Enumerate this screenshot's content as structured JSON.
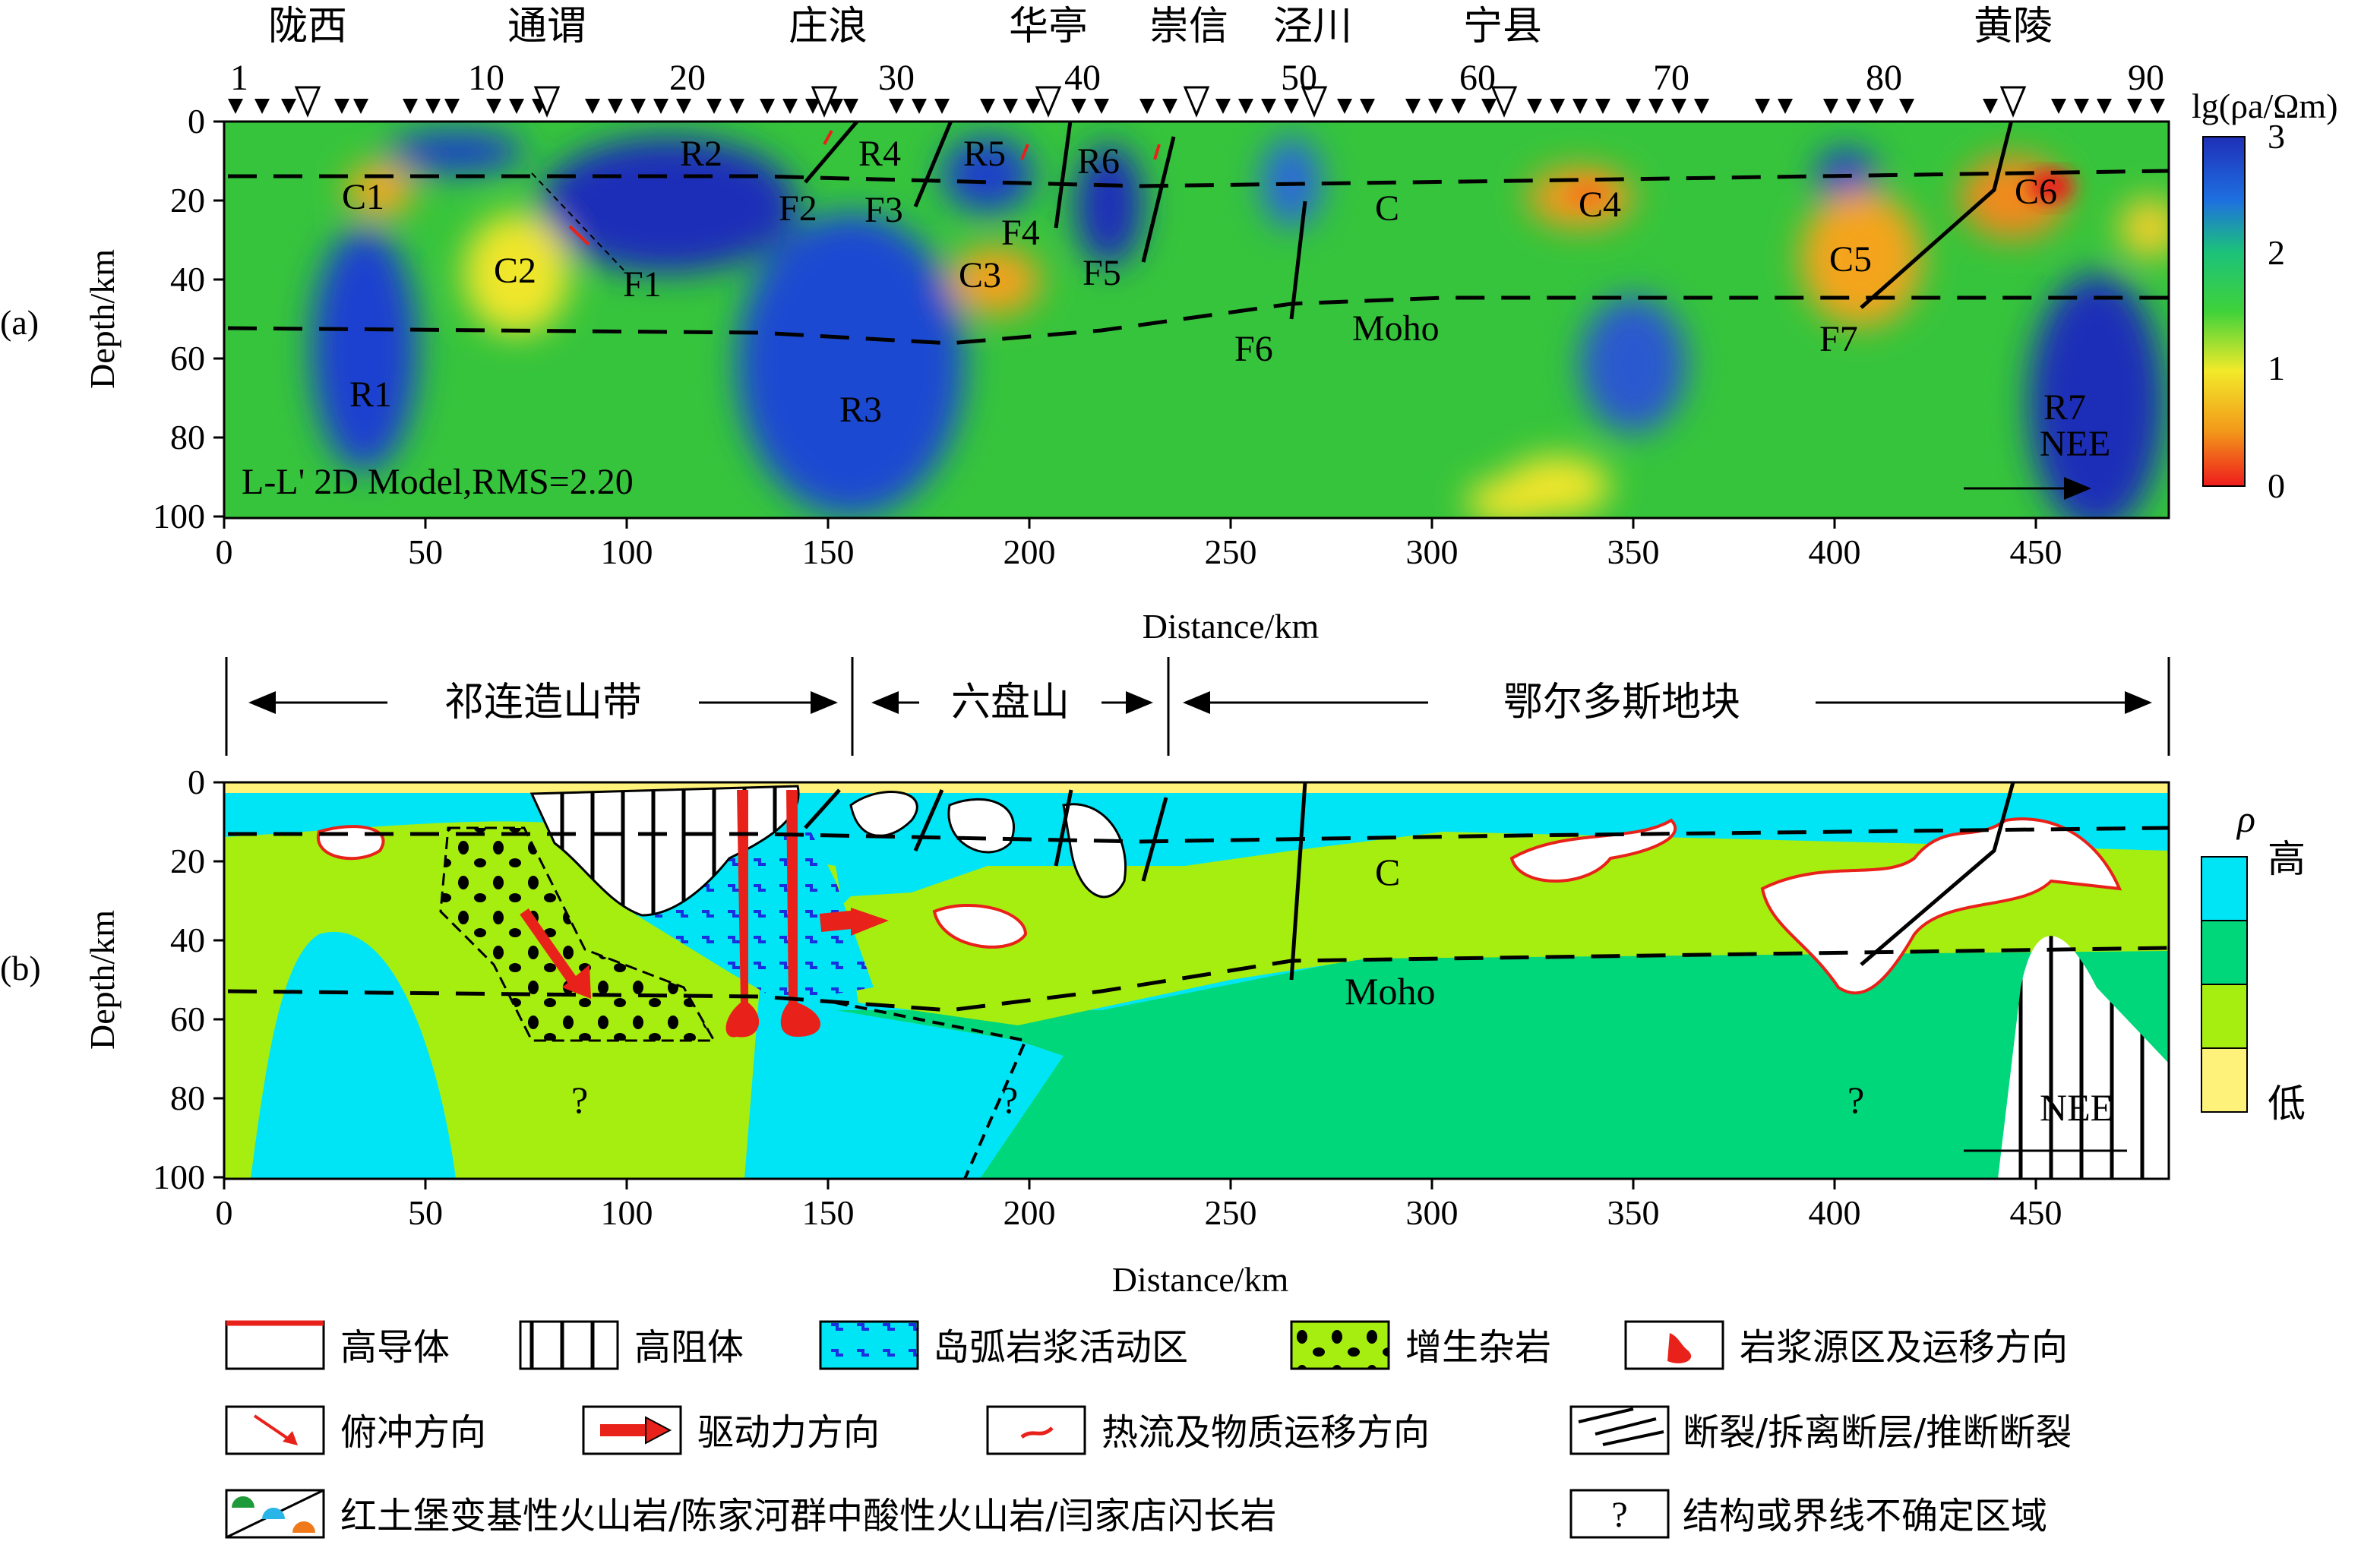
{
  "panel_a": {
    "label": "(a)",
    "stations": [
      "陇西",
      "通谓",
      "庄浪",
      "华亭",
      "崇信",
      "泾川",
      "宁县",
      "黄陵"
    ],
    "site_numbers": [
      "1",
      "10",
      "20",
      "30",
      "40",
      "50",
      "60",
      "70",
      "80",
      "90"
    ],
    "model_text": "L-L' 2D Model,RMS=2.20",
    "direction": "NEE",
    "ylabel": "Depth/km",
    "xlabel": "Distance/km",
    "resistor_labels": [
      "R1",
      "R2",
      "R3",
      "R4",
      "R5",
      "R6",
      "R7"
    ],
    "conductor_labels": [
      "C1",
      "C2",
      "C3",
      "C4",
      "C5",
      "C6",
      "C"
    ],
    "fault_labels": [
      "F1",
      "F2",
      "F3",
      "F4",
      "F5",
      "F6",
      "F7"
    ],
    "moho_label": "Moho",
    "colorbar": {
      "title": "lg(ρa/Ωm)",
      "ticks": [
        "3",
        "2",
        "1",
        "0"
      ]
    }
  },
  "panel_b": {
    "label": "(b)",
    "regions": [
      "祁连造山带",
      "六盘山",
      "鄂尔多斯地块"
    ],
    "ylabel": "Depth/km",
    "xlabel": "Distance/km",
    "c_label": "C",
    "moho_label": "Moho",
    "question": "?",
    "direction": "NEE",
    "legend_rho": "ρ",
    "legend_high": "高",
    "legend_low": "低"
  },
  "axes": {
    "x_ticks": [
      "0",
      "50",
      "100",
      "150",
      "200",
      "250",
      "300",
      "350",
      "400",
      "450"
    ],
    "y_ticks": [
      "0",
      "20",
      "40",
      "60",
      "80",
      "100"
    ]
  },
  "legend": [
    "高导体",
    "高阻体",
    "岛弧岩浆活动区",
    "增生杂岩",
    "岩浆源区及运移方向",
    "俯冲方向",
    "驱动力方向",
    "热流及物质运移方向",
    "断裂/拆离断层/推断断裂",
    "红土堡变基性火山岩/陈家河群中酸性火山岩/闫家店闪长岩",
    "结构或界线不确定区域"
  ],
  "colors": {
    "blue": "#1f3fc8",
    "green": "#2fbf3f",
    "yellow": "#f2e22a",
    "orange": "#f28a1a",
    "red": "#e8221a",
    "cyan": "#00e5f5",
    "sea": "#00d67a",
    "lime": "#a6ee10",
    "pale": "#fff27a"
  }
}
